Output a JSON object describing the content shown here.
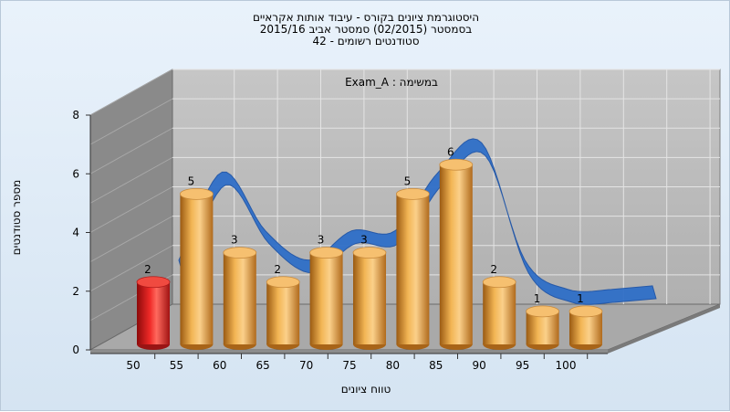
{
  "chart_data": {
    "type": "bar",
    "title_lines": [
      "היסטוגרמת ציונים בקורס - עיבוד אותות אקראיים",
      "בסמסטר  (02/2015)  סמסטר אביב 2015/16",
      "סטודנטים רשומים - 42"
    ],
    "subtitle": "Exam_A : במשימה",
    "xlabel": "טווח ציונים",
    "ylabel": "מספר סטודנטים",
    "categories": [
      "50",
      "55",
      "60",
      "65",
      "70",
      "75",
      "80",
      "85",
      "90",
      "95",
      "100"
    ],
    "values": [
      2,
      5,
      3,
      2,
      3,
      3,
      5,
      6,
      2,
      1,
      1
    ],
    "data_labels": [
      "2",
      "5",
      "3",
      "2",
      "3",
      "3",
      "5",
      "6",
      "2",
      "1",
      "1"
    ],
    "highlight_index": 0,
    "yticks": [
      "0",
      "2",
      "4",
      "6",
      "8"
    ],
    "ylim": [
      0,
      8
    ],
    "grid": true,
    "legend": "none",
    "colors": {
      "bar": "#e8a344",
      "bar_highlight": "#e8201e",
      "curve": "#2f6fc8",
      "back_wall": "#bcbcbc",
      "side_wall": "#8a8a8a",
      "floor": "#a9a9a9"
    }
  }
}
